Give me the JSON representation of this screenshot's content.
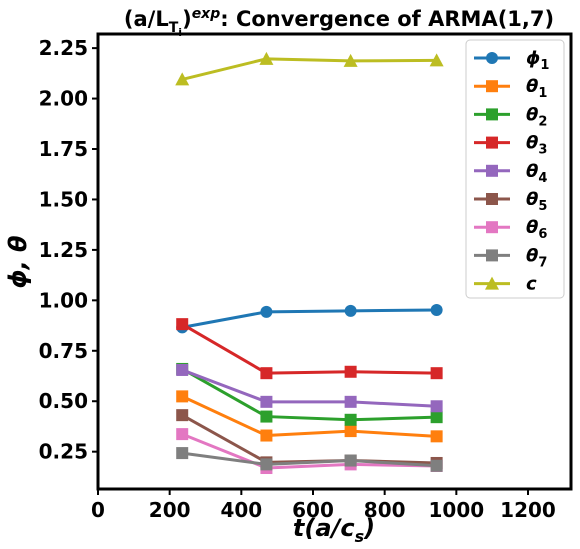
{
  "chart_data": {
    "type": "line",
    "title": {
      "base": "(a/L",
      "sub1": "T",
      "sub2": "i",
      "close": ")",
      "sup": "exp",
      "rest": ": Convergence of ARMA(1,7)"
    },
    "xlabel": {
      "main": "t(a/c",
      "sub": "s",
      "close": ")"
    },
    "ylabel": "ϕ, θ",
    "xlim": [
      0,
      1320
    ],
    "ylim": [
      0.065,
      2.32
    ],
    "xticks": [
      "0",
      "200",
      "400",
      "600",
      "800",
      "1000",
      "1200"
    ],
    "yticks": [
      "0.25",
      "0.50",
      "0.75",
      "1.00",
      "1.25",
      "1.50",
      "1.75",
      "2.00",
      "2.25"
    ],
    "legend_position": "upper right",
    "x": [
      235,
      470,
      705,
      945
    ],
    "series": [
      {
        "name": "ϕ",
        "sub": "1",
        "marker": "circle",
        "color": "#1f77b4",
        "values": [
          0.866,
          0.943,
          0.948,
          0.952
        ]
      },
      {
        "name": "θ",
        "sub": "1",
        "marker": "square",
        "color": "#ff7f0e",
        "values": [
          0.524,
          0.33,
          0.352,
          0.326
        ]
      },
      {
        "name": "θ",
        "sub": "2",
        "marker": "square",
        "color": "#2ca02c",
        "values": [
          0.66,
          0.424,
          0.408,
          0.421
        ]
      },
      {
        "name": "θ",
        "sub": "3",
        "marker": "square",
        "color": "#d62728",
        "values": [
          0.882,
          0.639,
          0.646,
          0.639
        ]
      },
      {
        "name": "θ",
        "sub": "4",
        "marker": "square",
        "color": "#9467bd",
        "values": [
          0.655,
          0.497,
          0.497,
          0.475
        ]
      },
      {
        "name": "θ",
        "sub": "5",
        "marker": "square",
        "color": "#8c564b",
        "values": [
          0.431,
          0.197,
          0.206,
          0.194
        ]
      },
      {
        "name": "θ",
        "sub": "6",
        "marker": "square",
        "color": "#e377c2",
        "values": [
          0.337,
          0.169,
          0.187,
          0.179
        ]
      },
      {
        "name": "θ",
        "sub": "7",
        "marker": "square",
        "color": "#7f7f7f",
        "values": [
          0.243,
          0.187,
          0.206,
          0.18
        ]
      },
      {
        "name": "c",
        "sub": "",
        "marker": "triangle",
        "color": "#bcbd22",
        "values": [
          2.095,
          2.197,
          2.187,
          2.189
        ]
      }
    ]
  }
}
